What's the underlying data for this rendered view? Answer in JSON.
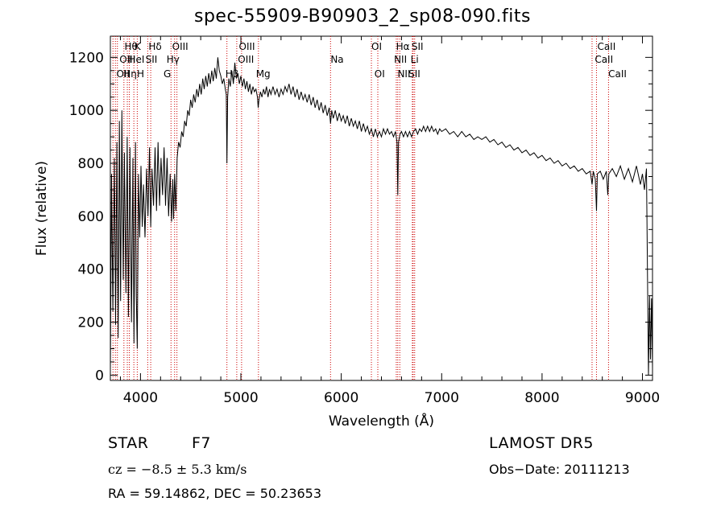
{
  "chart_data": {
    "type": "line",
    "title": "spec-55909-B90903_2_sp08-090.fits",
    "xlabel": "Wavelength (Å)",
    "ylabel": "Flux (relative)",
    "xlim": [
      3700,
      9100
    ],
    "ylim": [
      -20,
      1280
    ],
    "xticks": [
      4000,
      5000,
      6000,
      7000,
      8000,
      9000
    ],
    "yticks": [
      0,
      200,
      400,
      600,
      800,
      1000,
      1200
    ],
    "grid": false,
    "series": [
      {
        "color": "#000000",
        "points": [
          [
            3700,
            20
          ],
          [
            3712,
            760
          ],
          [
            3725,
            240
          ],
          [
            3740,
            820
          ],
          [
            3752,
            190
          ],
          [
            3765,
            880
          ],
          [
            3778,
            140
          ],
          [
            3790,
            960
          ],
          [
            3802,
            280
          ],
          [
            3815,
            1000
          ],
          [
            3828,
            360
          ],
          [
            3840,
            840
          ],
          [
            3855,
            310
          ],
          [
            3868,
            900
          ],
          [
            3880,
            220
          ],
          [
            3895,
            860
          ],
          [
            3910,
            200
          ],
          [
            3925,
            820
          ],
          [
            3935,
            120
          ],
          [
            3950,
            880
          ],
          [
            3958,
            300
          ],
          [
            3968,
            100
          ],
          [
            3980,
            760
          ],
          [
            3992,
            520
          ],
          [
            4005,
            790
          ],
          [
            4018,
            560
          ],
          [
            4030,
            720
          ],
          [
            4045,
            520
          ],
          [
            4060,
            780
          ],
          [
            4075,
            600
          ],
          [
            4090,
            860
          ],
          [
            4102,
            560
          ],
          [
            4115,
            780
          ],
          [
            4130,
            640
          ],
          [
            4145,
            860
          ],
          [
            4160,
            620
          ],
          [
            4175,
            880
          ],
          [
            4190,
            640
          ],
          [
            4205,
            820
          ],
          [
            4220,
            680
          ],
          [
            4235,
            860
          ],
          [
            4250,
            640
          ],
          [
            4265,
            820
          ],
          [
            4280,
            600
          ],
          [
            4295,
            760
          ],
          [
            4310,
            580
          ],
          [
            4322,
            740
          ],
          [
            4330,
            590
          ],
          [
            4340,
            760
          ],
          [
            4352,
            620
          ],
          [
            4365,
            820
          ],
          [
            4380,
            880
          ],
          [
            4395,
            860
          ],
          [
            4410,
            920
          ],
          [
            4425,
            900
          ],
          [
            4440,
            960
          ],
          [
            4455,
            940
          ],
          [
            4470,
            1000
          ],
          [
            4485,
            980
          ],
          [
            4500,
            1040
          ],
          [
            4515,
            1010
          ],
          [
            4530,
            1060
          ],
          [
            4545,
            1030
          ],
          [
            4560,
            1080
          ],
          [
            4575,
            1050
          ],
          [
            4590,
            1100
          ],
          [
            4605,
            1060
          ],
          [
            4620,
            1120
          ],
          [
            4635,
            1080
          ],
          [
            4650,
            1130
          ],
          [
            4665,
            1090
          ],
          [
            4680,
            1140
          ],
          [
            4695,
            1100
          ],
          [
            4710,
            1150
          ],
          [
            4725,
            1110
          ],
          [
            4740,
            1160
          ],
          [
            4755,
            1120
          ],
          [
            4770,
            1200
          ],
          [
            4785,
            1150
          ],
          [
            4800,
            1130
          ],
          [
            4815,
            1100
          ],
          [
            4830,
            1120
          ],
          [
            4845,
            1080
          ],
          [
            4855,
            1060
          ],
          [
            4861,
            800
          ],
          [
            4868,
            1050
          ],
          [
            4880,
            1120
          ],
          [
            4895,
            1090
          ],
          [
            4910,
            1150
          ],
          [
            4925,
            1100
          ],
          [
            4940,
            1180
          ],
          [
            4955,
            1120
          ],
          [
            4970,
            1140
          ],
          [
            4985,
            1100
          ],
          [
            5000,
            1130
          ],
          [
            5015,
            1090
          ],
          [
            5030,
            1120
          ],
          [
            5045,
            1080
          ],
          [
            5060,
            1110
          ],
          [
            5075,
            1070
          ],
          [
            5090,
            1100
          ],
          [
            5105,
            1060
          ],
          [
            5120,
            1090
          ],
          [
            5135,
            1070
          ],
          [
            5150,
            1080
          ],
          [
            5165,
            1050
          ],
          [
            5172,
            1010
          ],
          [
            5180,
            1040
          ],
          [
            5195,
            1070
          ],
          [
            5210,
            1050
          ],
          [
            5225,
            1080
          ],
          [
            5240,
            1060
          ],
          [
            5255,
            1090
          ],
          [
            5270,
            1050
          ],
          [
            5285,
            1080
          ],
          [
            5300,
            1060
          ],
          [
            5320,
            1090
          ],
          [
            5340,
            1060
          ],
          [
            5360,
            1080
          ],
          [
            5380,
            1050
          ],
          [
            5400,
            1080
          ],
          [
            5420,
            1060
          ],
          [
            5440,
            1090
          ],
          [
            5460,
            1070
          ],
          [
            5480,
            1100
          ],
          [
            5500,
            1060
          ],
          [
            5520,
            1090
          ],
          [
            5540,
            1050
          ],
          [
            5560,
            1080
          ],
          [
            5580,
            1040
          ],
          [
            5600,
            1070
          ],
          [
            5620,
            1040
          ],
          [
            5640,
            1060
          ],
          [
            5660,
            1030
          ],
          [
            5680,
            1060
          ],
          [
            5700,
            1020
          ],
          [
            5720,
            1050
          ],
          [
            5740,
            1010
          ],
          [
            5760,
            1040
          ],
          [
            5780,
            1000
          ],
          [
            5800,
            1030
          ],
          [
            5820,
            990
          ],
          [
            5840,
            1020
          ],
          [
            5860,
            980
          ],
          [
            5880,
            1010
          ],
          [
            5893,
            950
          ],
          [
            5905,
            1000
          ],
          [
            5920,
            970
          ],
          [
            5940,
            1000
          ],
          [
            5960,
            960
          ],
          [
            5980,
            990
          ],
          [
            6000,
            960
          ],
          [
            6020,
            980
          ],
          [
            6040,
            950
          ],
          [
            6060,
            980
          ],
          [
            6080,
            940
          ],
          [
            6100,
            970
          ],
          [
            6120,
            940
          ],
          [
            6140,
            960
          ],
          [
            6160,
            930
          ],
          [
            6180,
            960
          ],
          [
            6200,
            920
          ],
          [
            6220,
            950
          ],
          [
            6240,
            920
          ],
          [
            6260,
            940
          ],
          [
            6280,
            910
          ],
          [
            6300,
            930
          ],
          [
            6320,
            900
          ],
          [
            6340,
            930
          ],
          [
            6360,
            900
          ],
          [
            6380,
            920
          ],
          [
            6400,
            900
          ],
          [
            6420,
            930
          ],
          [
            6440,
            910
          ],
          [
            6460,
            930
          ],
          [
            6480,
            910
          ],
          [
            6500,
            920
          ],
          [
            6520,
            900
          ],
          [
            6540,
            920
          ],
          [
            6555,
            880
          ],
          [
            6563,
            680
          ],
          [
            6570,
            880
          ],
          [
            6585,
            910
          ],
          [
            6600,
            920
          ],
          [
            6620,
            900
          ],
          [
            6640,
            920
          ],
          [
            6660,
            900
          ],
          [
            6680,
            920
          ],
          [
            6700,
            900
          ],
          [
            6720,
            920
          ],
          [
            6740,
            930
          ],
          [
            6760,
            910
          ],
          [
            6780,
            930
          ],
          [
            6800,
            920
          ],
          [
            6820,
            940
          ],
          [
            6840,
            920
          ],
          [
            6860,
            940
          ],
          [
            6880,
            920
          ],
          [
            6900,
            940
          ],
          [
            6920,
            920
          ],
          [
            6940,
            930
          ],
          [
            6960,
            910
          ],
          [
            6980,
            930
          ],
          [
            7000,
            920
          ],
          [
            7040,
            930
          ],
          [
            7080,
            910
          ],
          [
            7120,
            920
          ],
          [
            7160,
            900
          ],
          [
            7200,
            920
          ],
          [
            7240,
            900
          ],
          [
            7280,
            910
          ],
          [
            7320,
            890
          ],
          [
            7360,
            900
          ],
          [
            7400,
            890
          ],
          [
            7440,
            900
          ],
          [
            7480,
            880
          ],
          [
            7520,
            890
          ],
          [
            7560,
            870
          ],
          [
            7600,
            880
          ],
          [
            7640,
            860
          ],
          [
            7680,
            870
          ],
          [
            7720,
            850
          ],
          [
            7760,
            860
          ],
          [
            7800,
            840
          ],
          [
            7840,
            850
          ],
          [
            7880,
            830
          ],
          [
            7920,
            840
          ],
          [
            7960,
            820
          ],
          [
            8000,
            830
          ],
          [
            8040,
            810
          ],
          [
            8080,
            820
          ],
          [
            8120,
            800
          ],
          [
            8160,
            810
          ],
          [
            8200,
            790
          ],
          [
            8240,
            800
          ],
          [
            8280,
            780
          ],
          [
            8320,
            790
          ],
          [
            8360,
            770
          ],
          [
            8400,
            780
          ],
          [
            8440,
            760
          ],
          [
            8480,
            770
          ],
          [
            8498,
            720
          ],
          [
            8510,
            770
          ],
          [
            8530,
            740
          ],
          [
            8542,
            620
          ],
          [
            8550,
            760
          ],
          [
            8580,
            770
          ],
          [
            8610,
            740
          ],
          [
            8640,
            770
          ],
          [
            8655,
            680
          ],
          [
            8665,
            760
          ],
          [
            8700,
            780
          ],
          [
            8740,
            750
          ],
          [
            8780,
            790
          ],
          [
            8820,
            740
          ],
          [
            8860,
            780
          ],
          [
            8900,
            730
          ],
          [
            8940,
            790
          ],
          [
            8980,
            720
          ],
          [
            9000,
            760
          ],
          [
            9020,
            700
          ],
          [
            9040,
            780
          ],
          [
            9060,
            0
          ],
          [
            9070,
            300
          ],
          [
            9080,
            60
          ],
          [
            9090,
            290
          ],
          [
            9100,
            30
          ]
        ]
      }
    ],
    "lines": [
      {
        "wavelength": 3726,
        "labels": [
          "OII"
        ]
      },
      {
        "wavelength": 3750,
        "labels": [
          "OII"
        ]
      },
      {
        "wavelength": 3770,
        "labels": [
          "OII"
        ]
      },
      {
        "wavelength": 3835,
        "labels": [
          "Hθ"
        ]
      },
      {
        "wavelength": 3869,
        "labels": [
          "OIII"
        ]
      },
      {
        "wavelength": 3889,
        "labels": [
          "HeI"
        ]
      },
      {
        "wavelength": 3934,
        "labels": [
          "K"
        ]
      },
      {
        "wavelength": 3968,
        "labels": [
          "H"
        ]
      },
      {
        "wavelength": 4072,
        "labels": [
          "SII"
        ]
      },
      {
        "wavelength": 4102,
        "labels": [
          "Hδ"
        ]
      },
      {
        "wavelength": 4304,
        "labels": [
          "G"
        ]
      },
      {
        "wavelength": 4340,
        "labels": [
          "Hγ"
        ]
      },
      {
        "wavelength": 4363,
        "labels": [
          "OIII"
        ]
      },
      {
        "wavelength": 4861,
        "labels": [
          "Hβ"
        ]
      },
      {
        "wavelength": 4959,
        "labels": [
          "OIII"
        ]
      },
      {
        "wavelength": 5007,
        "labels": [
          "OIII"
        ]
      },
      {
        "wavelength": 5175,
        "labels": [
          "Mg"
        ]
      },
      {
        "wavelength": 5893,
        "labels": [
          "Na"
        ]
      },
      {
        "wavelength": 6300,
        "labels": [
          "OI"
        ]
      },
      {
        "wavelength": 6364,
        "labels": [
          "OI"
        ]
      },
      {
        "wavelength": 6548,
        "labels": [
          "NII"
        ]
      },
      {
        "wavelength": 6563,
        "labels": [
          "Hα"
        ]
      },
      {
        "wavelength": 6583,
        "labels": [
          "NII"
        ]
      },
      {
        "wavelength": 6708,
        "labels": [
          "Li"
        ]
      },
      {
        "wavelength": 6716,
        "labels": [
          "SII"
        ]
      },
      {
        "wavelength": 6731,
        "labels": [
          "SII"
        ]
      },
      {
        "wavelength": 8498,
        "labels": [
          "CaII"
        ]
      },
      {
        "wavelength": 8542,
        "labels": [
          "CaII"
        ]
      },
      {
        "wavelength": 8662,
        "labels": [
          "CaII"
        ]
      }
    ],
    "line_labels": {
      "row1": [
        "Hθ",
        "K",
        "Hδ",
        "OIII",
        "OIII",
        "OI",
        "Hα",
        "SII",
        "CaII"
      ],
      "row2": [
        "OIII",
        "HeI",
        "SII",
        "Hγ",
        "OIII",
        "Na",
        "NII",
        "Li",
        "CaII"
      ],
      "row3": [
        "OII",
        "Hη",
        "H",
        "G",
        "Hβ",
        "Mg",
        "OI",
        "NII",
        "SII",
        "CaII"
      ]
    },
    "line_color": "#cc0000"
  },
  "footer": {
    "class": "STAR",
    "subclass": "F7",
    "survey": "LAMOST  DR5",
    "cz": "cz = −8.5 ± 5.3 km/s",
    "obs_date": "Obs−Date: 20111213",
    "coords": "RA =  59.14862, DEC =  50.23653"
  }
}
